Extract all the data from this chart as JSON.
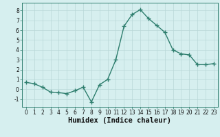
{
  "x": [
    0,
    1,
    2,
    3,
    4,
    5,
    6,
    7,
    8,
    9,
    10,
    11,
    12,
    13,
    14,
    15,
    16,
    17,
    18,
    19,
    20,
    21,
    22,
    23
  ],
  "y": [
    0.7,
    0.55,
    0.2,
    -0.3,
    -0.35,
    -0.45,
    -0.15,
    0.2,
    -1.3,
    0.45,
    1.0,
    3.0,
    6.4,
    7.6,
    8.1,
    7.2,
    6.5,
    5.8,
    4.0,
    3.6,
    3.5,
    2.5,
    2.5,
    2.6
  ],
  "xlabel": "Humidex (Indice chaleur)",
  "line_color": "#2d7d6d",
  "marker": "+",
  "marker_size": 4,
  "bg_color": "#d6efef",
  "grid_color": "#b8d8d8",
  "grid_color_minor": "#cce8e8",
  "ylim": [
    -1.8,
    8.8
  ],
  "xlim": [
    -0.5,
    23.5
  ],
  "yticks": [
    -1,
    0,
    1,
    2,
    3,
    4,
    5,
    6,
    7,
    8
  ],
  "xticks": [
    0,
    1,
    2,
    3,
    4,
    5,
    6,
    7,
    8,
    9,
    10,
    11,
    12,
    13,
    14,
    15,
    16,
    17,
    18,
    19,
    20,
    21,
    22,
    23
  ],
  "tick_fontsize": 5.5,
  "xlabel_fontsize": 7.5,
  "linewidth": 1.0
}
